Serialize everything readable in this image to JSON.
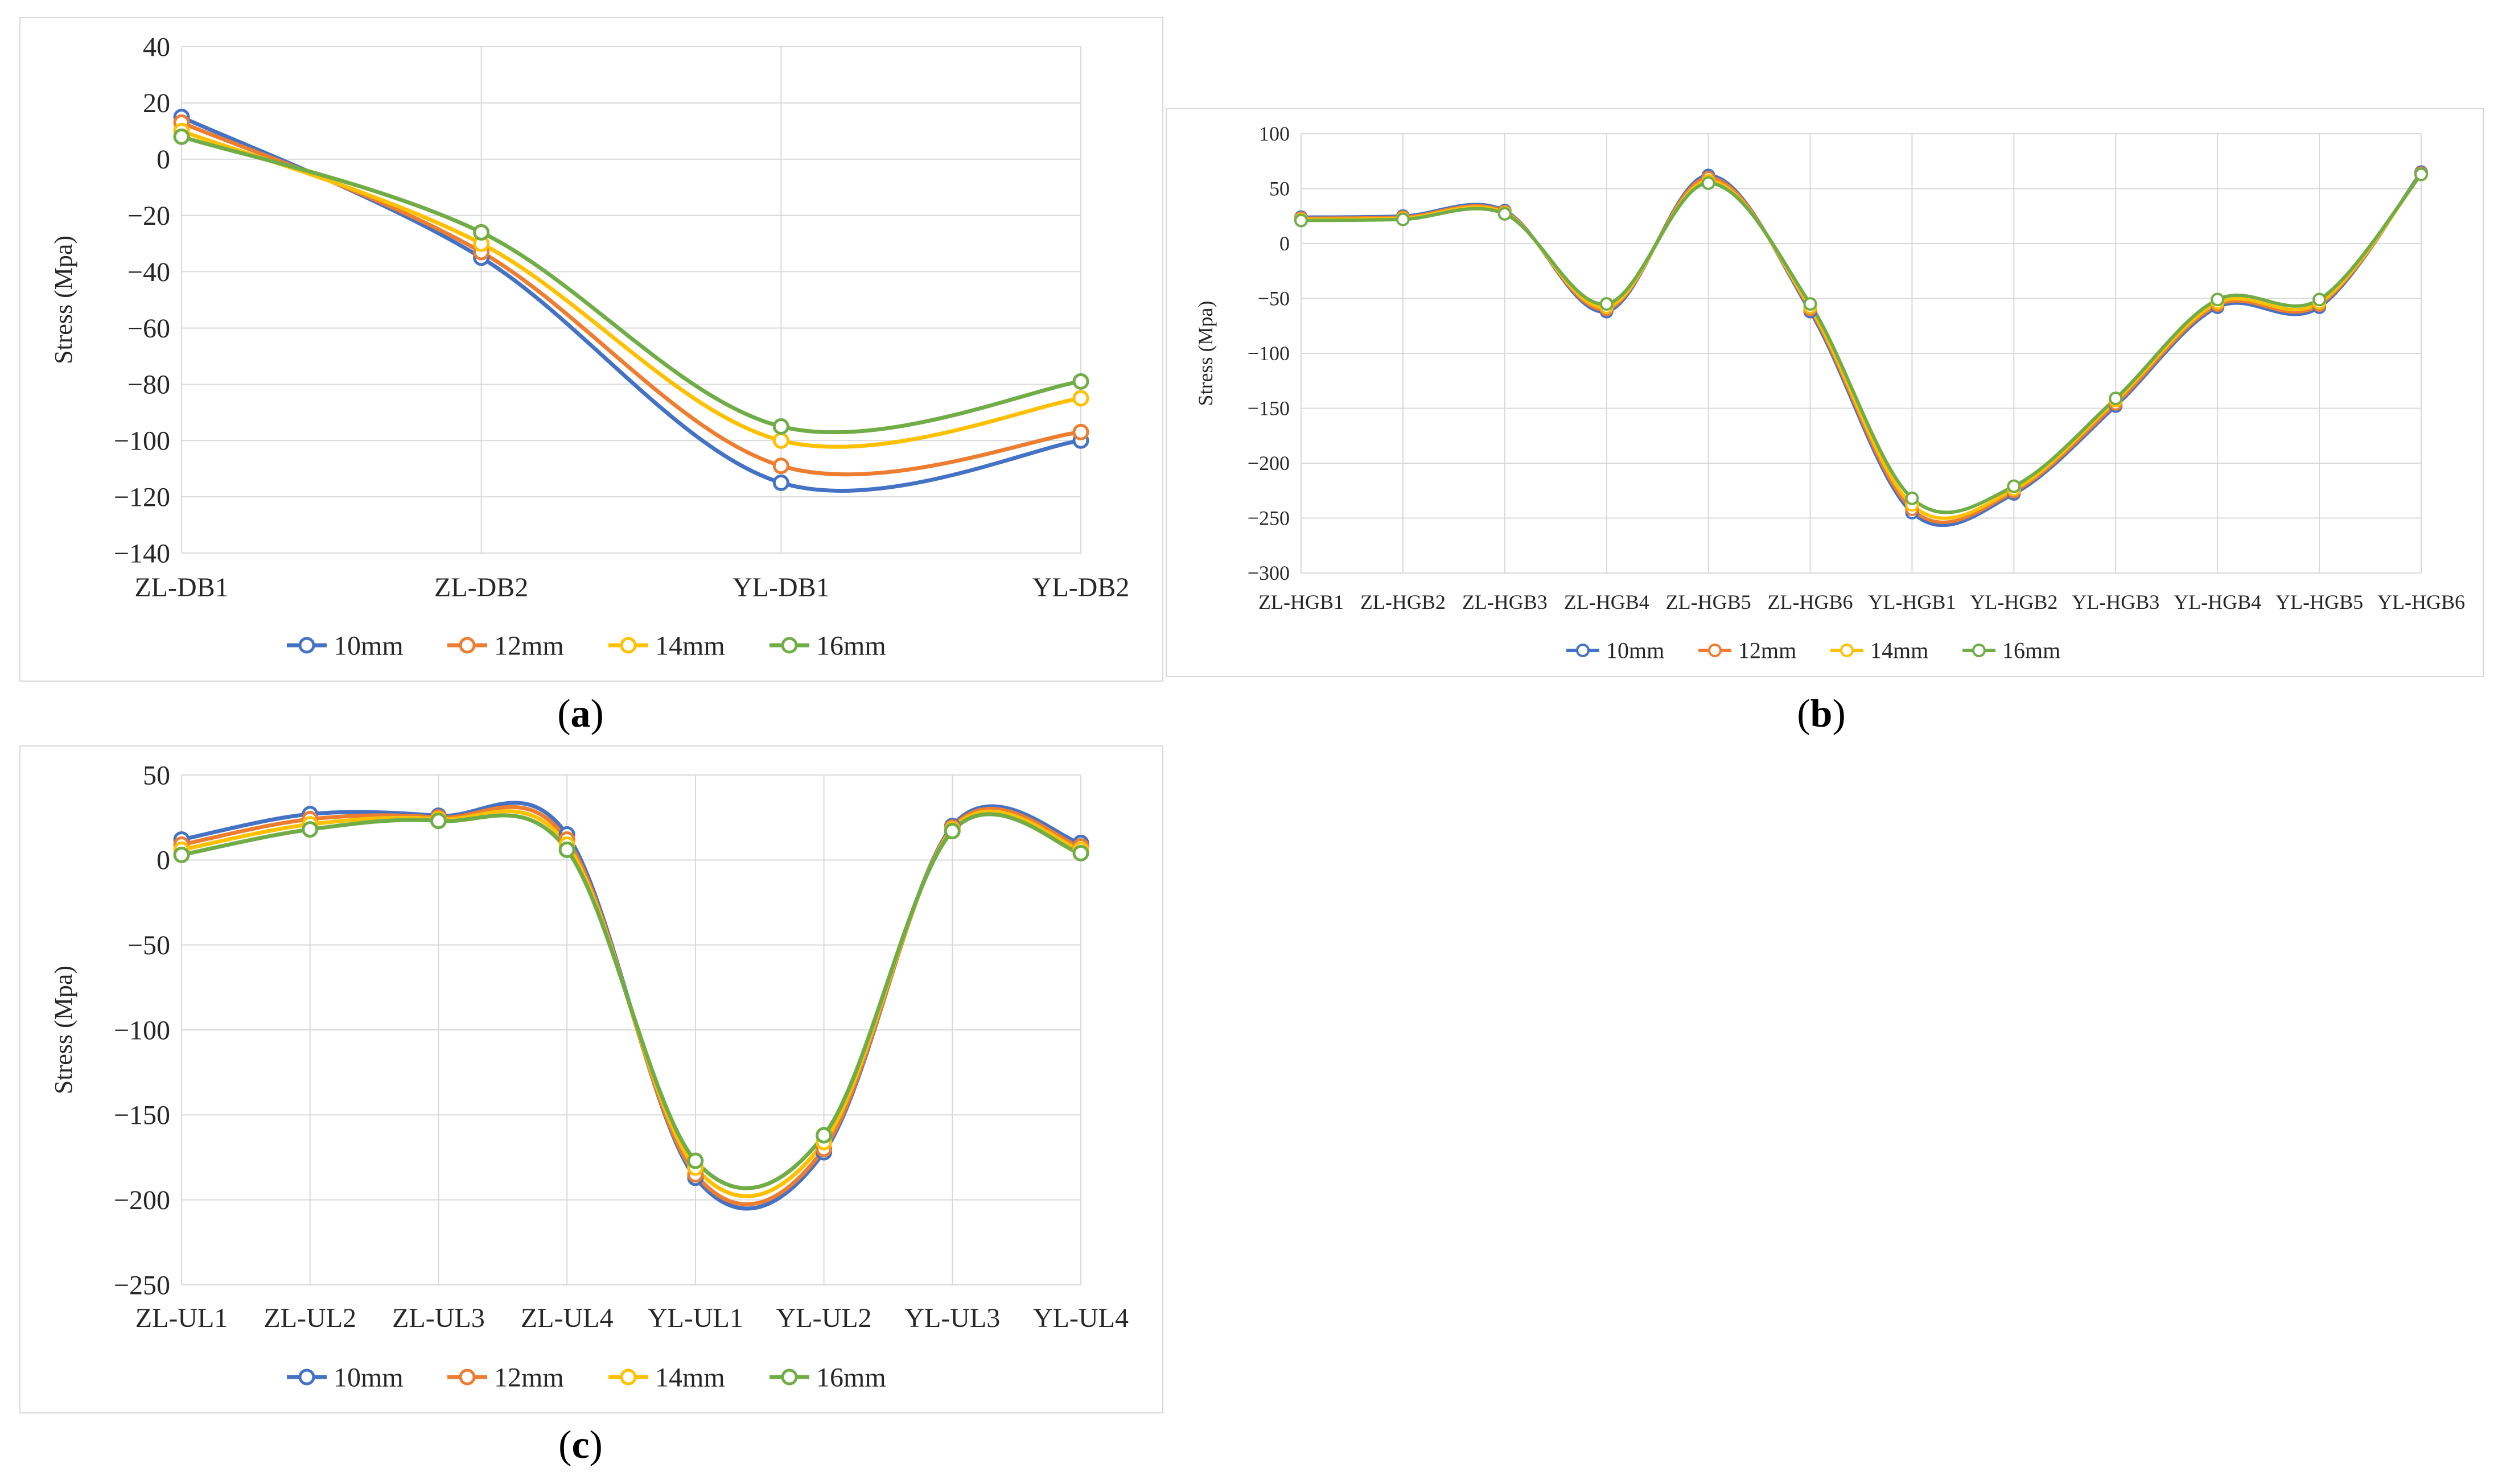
{
  "colors": {
    "s10": "#4472C4",
    "s12": "#ED7D31",
    "s14": "#FFC000",
    "s16": "#70AD47"
  },
  "chart_data": [
    {
      "id": "a",
      "type": "line",
      "ylabel": "Stress (Mpa)",
      "ylim": [
        -140,
        40
      ],
      "yticks": [
        40,
        20,
        0,
        -20,
        -40,
        -60,
        -80,
        -100,
        -120,
        -140
      ],
      "yticklabels": [
        "40",
        "20",
        "0",
        "−20",
        "−40",
        "−60",
        "−80",
        "−100",
        "−120",
        "−140"
      ],
      "categories": [
        "ZL-DB1",
        "ZL-DB2",
        "YL-DB1",
        "YL-DB2"
      ],
      "grid": true,
      "legend": "bottom",
      "series": [
        {
          "name": "10mm",
          "values": [
            15,
            -35,
            -115,
            -100
          ]
        },
        {
          "name": "12mm",
          "values": [
            13,
            -33,
            -109,
            -97
          ]
        },
        {
          "name": "14mm",
          "values": [
            10,
            -30,
            -100,
            -85
          ]
        },
        {
          "name": "16mm",
          "values": [
            8,
            -26,
            -95,
            -79
          ]
        }
      ]
    },
    {
      "id": "b",
      "type": "line",
      "ylabel": "Stress (Mpa)",
      "ylim": [
        -300,
        100
      ],
      "yticks": [
        100,
        50,
        0,
        -50,
        -100,
        -150,
        -200,
        -250,
        -300
      ],
      "yticklabels": [
        "100",
        "50",
        "0",
        "−50",
        "−100",
        "−150",
        "−200",
        "−250",
        "−300"
      ],
      "categories": [
        "ZL-HGB1",
        "ZL-HGB2",
        "ZL-HGB3",
        "ZL-HGB4",
        "ZL-HGB5",
        "ZL-HGB6",
        "YL-HGB1",
        "YL-HGB2",
        "YL-HGB3",
        "YL-HGB4",
        "YL-HGB5",
        "YL-HGB6"
      ],
      "grid": true,
      "legend": "bottom",
      "series": [
        {
          "name": "10mm",
          "values": [
            24,
            25,
            30,
            -62,
            62,
            -62,
            -245,
            -228,
            -148,
            -58,
            -58,
            65
          ]
        },
        {
          "name": "12mm",
          "values": [
            23,
            24,
            29,
            -60,
            60,
            -60,
            -242,
            -226,
            -146,
            -56,
            -56,
            64
          ]
        },
        {
          "name": "14mm",
          "values": [
            22,
            23,
            28,
            -58,
            57,
            -58,
            -238,
            -224,
            -143,
            -54,
            -54,
            63
          ]
        },
        {
          "name": "16mm",
          "values": [
            21,
            22,
            27,
            -55,
            55,
            -55,
            -232,
            -221,
            -141,
            -51,
            -51,
            63
          ]
        }
      ]
    },
    {
      "id": "c",
      "type": "line",
      "ylabel": "Stress (Mpa)",
      "ylim": [
        -250,
        50
      ],
      "yticks": [
        50,
        0,
        -50,
        -100,
        -150,
        -200,
        -250
      ],
      "yticklabels": [
        "50",
        "0",
        "−50",
        "−100",
        "−150",
        "−200",
        "−250"
      ],
      "categories": [
        "ZL-UL1",
        "ZL-UL2",
        "ZL-UL3",
        "ZL-UL4",
        "YL-UL1",
        "YL-UL2",
        "YL-UL3",
        "YL-UL4"
      ],
      "grid": true,
      "legend": "bottom",
      "series": [
        {
          "name": "10mm",
          "values": [
            12,
            27,
            26,
            15,
            -187,
            -172,
            20,
            10
          ]
        },
        {
          "name": "12mm",
          "values": [
            9,
            24,
            25,
            12,
            -185,
            -170,
            19,
            8
          ]
        },
        {
          "name": "14mm",
          "values": [
            6,
            21,
            24,
            9,
            -181,
            -166,
            18,
            6
          ]
        },
        {
          "name": "16mm",
          "values": [
            3,
            18,
            23,
            6,
            -177,
            -162,
            17,
            4
          ]
        }
      ]
    }
  ],
  "captions": {
    "a": "a",
    "b": "b",
    "c": "c"
  }
}
